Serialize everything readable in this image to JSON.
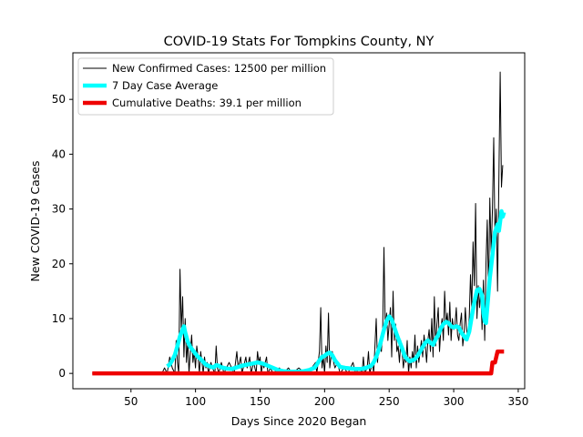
{
  "chart_data": {
    "type": "line",
    "title": "COVID-19 Stats For Tompkins County, NY",
    "xlabel": "Days Since 2020 Began",
    "ylabel": "New COVID-19 Cases",
    "xlim": [
      5,
      355
    ],
    "ylim": [
      -2.8,
      58.5
    ],
    "xticks": [
      50,
      100,
      150,
      200,
      250,
      300,
      350
    ],
    "yticks": [
      0,
      10,
      20,
      30,
      40,
      50
    ],
    "grid": false,
    "legend_position": "top-left",
    "series": [
      {
        "name": "New Confirmed Cases: 12500 per million",
        "color": "#000000",
        "points": [
          [
            20,
            0
          ],
          [
            74,
            0
          ],
          [
            76,
            1
          ],
          [
            78,
            0
          ],
          [
            80,
            3
          ],
          [
            82,
            1
          ],
          [
            84,
            0
          ],
          [
            85,
            6
          ],
          [
            86,
            2
          ],
          [
            87,
            0
          ],
          [
            88,
            19
          ],
          [
            89,
            8
          ],
          [
            90,
            14
          ],
          [
            91,
            3
          ],
          [
            92,
            10
          ],
          [
            93,
            2
          ],
          [
            94,
            6
          ],
          [
            95,
            0
          ],
          [
            96,
            4
          ],
          [
            97,
            7
          ],
          [
            98,
            2
          ],
          [
            99,
            4
          ],
          [
            100,
            1
          ],
          [
            101,
            5
          ],
          [
            102,
            3
          ],
          [
            103,
            0
          ],
          [
            104,
            4
          ],
          [
            105,
            2
          ],
          [
            106,
            0
          ],
          [
            107,
            3
          ],
          [
            108,
            1
          ],
          [
            109,
            2
          ],
          [
            110,
            0
          ],
          [
            112,
            2
          ],
          [
            113,
            1
          ],
          [
            115,
            0
          ],
          [
            116,
            5
          ],
          [
            117,
            1
          ],
          [
            118,
            0
          ],
          [
            120,
            2
          ],
          [
            122,
            0
          ],
          [
            124,
            1
          ],
          [
            126,
            2
          ],
          [
            128,
            1
          ],
          [
            130,
            0
          ],
          [
            132,
            4
          ],
          [
            133,
            1
          ],
          [
            135,
            3
          ],
          [
            136,
            0
          ],
          [
            138,
            2
          ],
          [
            139,
            3
          ],
          [
            140,
            1
          ],
          [
            142,
            3
          ],
          [
            143,
            0
          ],
          [
            145,
            2
          ],
          [
            146,
            1
          ],
          [
            147,
            0
          ],
          [
            148,
            4
          ],
          [
            149,
            2
          ],
          [
            150,
            3
          ],
          [
            151,
            0
          ],
          [
            152,
            2
          ],
          [
            153,
            1
          ],
          [
            155,
            3
          ],
          [
            156,
            0
          ],
          [
            158,
            1
          ],
          [
            160,
            0
          ],
          [
            165,
            1
          ],
          [
            168,
            0
          ],
          [
            172,
            1
          ],
          [
            175,
            0
          ],
          [
            180,
            1
          ],
          [
            185,
            0
          ],
          [
            190,
            1
          ],
          [
            193,
            2
          ],
          [
            194,
            0
          ],
          [
            196,
            4
          ],
          [
            197,
            12
          ],
          [
            198,
            1
          ],
          [
            199,
            3
          ],
          [
            200,
            0
          ],
          [
            201,
            5
          ],
          [
            202,
            2
          ],
          [
            203,
            11
          ],
          [
            204,
            1
          ],
          [
            205,
            3
          ],
          [
            206,
            4
          ],
          [
            207,
            2
          ],
          [
            208,
            1
          ],
          [
            210,
            2
          ],
          [
            212,
            0
          ],
          [
            215,
            1
          ],
          [
            218,
            0
          ],
          [
            222,
            2
          ],
          [
            224,
            0
          ],
          [
            227,
            1
          ],
          [
            229,
            0
          ],
          [
            230,
            3
          ],
          [
            231,
            0
          ],
          [
            233,
            1
          ],
          [
            234,
            4
          ],
          [
            235,
            0
          ],
          [
            237,
            2
          ],
          [
            238,
            0
          ],
          [
            240,
            10
          ],
          [
            241,
            2
          ],
          [
            242,
            5
          ],
          [
            244,
            4
          ],
          [
            245,
            8
          ],
          [
            246,
            23
          ],
          [
            247,
            8
          ],
          [
            248,
            11
          ],
          [
            249,
            6
          ],
          [
            250,
            9
          ],
          [
            251,
            12
          ],
          [
            252,
            3
          ],
          [
            253,
            15
          ],
          [
            254,
            6
          ],
          [
            255,
            9
          ],
          [
            256,
            4
          ],
          [
            257,
            5
          ],
          [
            258,
            2
          ],
          [
            259,
            6
          ],
          [
            260,
            4
          ],
          [
            261,
            1
          ],
          [
            262,
            3
          ],
          [
            263,
            2
          ],
          [
            264,
            6
          ],
          [
            265,
            0
          ],
          [
            266,
            3
          ],
          [
            267,
            1
          ],
          [
            268,
            4
          ],
          [
            269,
            2
          ],
          [
            270,
            7
          ],
          [
            271,
            1
          ],
          [
            272,
            5
          ],
          [
            273,
            2
          ],
          [
            274,
            4
          ],
          [
            275,
            6
          ],
          [
            276,
            3
          ],
          [
            277,
            7
          ],
          [
            278,
            5
          ],
          [
            279,
            2
          ],
          [
            280,
            6
          ],
          [
            281,
            8
          ],
          [
            282,
            4
          ],
          [
            283,
            10
          ],
          [
            284,
            3
          ],
          [
            285,
            14
          ],
          [
            286,
            5
          ],
          [
            287,
            9
          ],
          [
            288,
            12
          ],
          [
            289,
            4
          ],
          [
            290,
            8
          ],
          [
            291,
            10
          ],
          [
            292,
            6
          ],
          [
            293,
            15
          ],
          [
            294,
            9
          ],
          [
            295,
            11
          ],
          [
            296,
            7
          ],
          [
            297,
            13
          ],
          [
            298,
            6
          ],
          [
            299,
            10
          ],
          [
            300,
            8
          ],
          [
            301,
            9
          ],
          [
            302,
            12
          ],
          [
            303,
            7
          ],
          [
            304,
            6
          ],
          [
            305,
            9
          ],
          [
            306,
            11
          ],
          [
            307,
            5
          ],
          [
            308,
            7
          ],
          [
            309,
            12
          ],
          [
            310,
            8
          ],
          [
            311,
            6
          ],
          [
            312,
            10
          ],
          [
            313,
            18
          ],
          [
            314,
            12
          ],
          [
            315,
            24
          ],
          [
            316,
            16
          ],
          [
            317,
            31
          ],
          [
            318,
            10
          ],
          [
            319,
            16
          ],
          [
            320,
            12
          ],
          [
            321,
            15
          ],
          [
            322,
            8
          ],
          [
            323,
            17
          ],
          [
            324,
            6
          ],
          [
            325,
            20
          ],
          [
            326,
            28
          ],
          [
            327,
            14
          ],
          [
            328,
            32
          ],
          [
            329,
            22
          ],
          [
            330,
            30
          ],
          [
            331,
            43
          ],
          [
            332,
            24
          ],
          [
            333,
            30
          ],
          [
            334,
            15
          ],
          [
            335,
            36
          ],
          [
            336,
            55
          ],
          [
            337,
            34
          ],
          [
            338,
            38
          ]
        ]
      },
      {
        "name": "7 Day Case Average",
        "color": "#00ffff",
        "points": [
          [
            78,
            1.3
          ],
          [
            80,
            1.6
          ],
          [
            82,
            2.4
          ],
          [
            84,
            3.4
          ],
          [
            86,
            5
          ],
          [
            88,
            6.8
          ],
          [
            90,
            8
          ],
          [
            91,
            8.6
          ],
          [
            92,
            7.5
          ],
          [
            94,
            5.8
          ],
          [
            96,
            4.8
          ],
          [
            98,
            4.2
          ],
          [
            100,
            3.6
          ],
          [
            102,
            3
          ],
          [
            104,
            2.6
          ],
          [
            106,
            2.1
          ],
          [
            108,
            1.6
          ],
          [
            110,
            1.4
          ],
          [
            112,
            1.2
          ],
          [
            114,
            1.1
          ],
          [
            116,
            1.5
          ],
          [
            118,
            1.4
          ],
          [
            120,
            1.1
          ],
          [
            124,
            0.9
          ],
          [
            128,
            0.8
          ],
          [
            132,
            1.1
          ],
          [
            136,
            1.4
          ],
          [
            140,
            1.6
          ],
          [
            144,
            1.8
          ],
          [
            148,
            2
          ],
          [
            152,
            1.8
          ],
          [
            156,
            1.4
          ],
          [
            160,
            1
          ],
          [
            164,
            0.6
          ],
          [
            168,
            0.4
          ],
          [
            172,
            0.3
          ],
          [
            176,
            0.3
          ],
          [
            180,
            0.3
          ],
          [
            184,
            0.4
          ],
          [
            188,
            0.6
          ],
          [
            192,
            1
          ],
          [
            194,
            1.6
          ],
          [
            196,
            2.4
          ],
          [
            198,
            3
          ],
          [
            200,
            3.2
          ],
          [
            202,
            3.6
          ],
          [
            204,
            3.8
          ],
          [
            206,
            3.3
          ],
          [
            208,
            2.4
          ],
          [
            210,
            1.8
          ],
          [
            212,
            1.2
          ],
          [
            216,
            1
          ],
          [
            220,
            0.9
          ],
          [
            224,
            0.8
          ],
          [
            228,
            0.8
          ],
          [
            232,
            1
          ],
          [
            236,
            1.4
          ],
          [
            238,
            2
          ],
          [
            240,
            3
          ],
          [
            242,
            4.4
          ],
          [
            244,
            6.2
          ],
          [
            246,
            8
          ],
          [
            248,
            9.6
          ],
          [
            250,
            10.4
          ],
          [
            252,
            9.8
          ],
          [
            254,
            8.4
          ],
          [
            256,
            7
          ],
          [
            258,
            5.8
          ],
          [
            260,
            4.6
          ],
          [
            262,
            3.2
          ],
          [
            264,
            2.6
          ],
          [
            266,
            2.2
          ],
          [
            268,
            2.4
          ],
          [
            270,
            2.6
          ],
          [
            272,
            3.2
          ],
          [
            274,
            4
          ],
          [
            276,
            4.8
          ],
          [
            278,
            5.6
          ],
          [
            280,
            6
          ],
          [
            282,
            5.6
          ],
          [
            284,
            5.2
          ],
          [
            286,
            6.2
          ],
          [
            288,
            7
          ],
          [
            290,
            8.2
          ],
          [
            292,
            9
          ],
          [
            294,
            9.4
          ],
          [
            296,
            9.2
          ],
          [
            298,
            8.6
          ],
          [
            300,
            8.4
          ],
          [
            302,
            8.6
          ],
          [
            304,
            8.4
          ],
          [
            306,
            7.4
          ],
          [
            308,
            6.8
          ],
          [
            310,
            6.2
          ],
          [
            312,
            7.6
          ],
          [
            314,
            10.4
          ],
          [
            316,
            13
          ],
          [
            318,
            15.2
          ],
          [
            320,
            15.4
          ],
          [
            322,
            14.2
          ],
          [
            323,
            11
          ],
          [
            324,
            9.5
          ],
          [
            325,
            9.2
          ],
          [
            326,
            12
          ],
          [
            328,
            17.4
          ],
          [
            330,
            21.6
          ],
          [
            332,
            25.8
          ],
          [
            334,
            27.2
          ],
          [
            335,
            26
          ],
          [
            336,
            27.8
          ],
          [
            337,
            29.6
          ],
          [
            338,
            28.6
          ],
          [
            339,
            29.4
          ]
        ]
      },
      {
        "name": "Cumulative Deaths: 39.1 per million",
        "color": "#ee0000",
        "points": [
          [
            20,
            0
          ],
          [
            200,
            0
          ],
          [
            329,
            0
          ],
          [
            330,
            2
          ],
          [
            331,
            2
          ],
          [
            332,
            2
          ],
          [
            333,
            3
          ],
          [
            334,
            4
          ],
          [
            339,
            4
          ]
        ]
      }
    ]
  }
}
